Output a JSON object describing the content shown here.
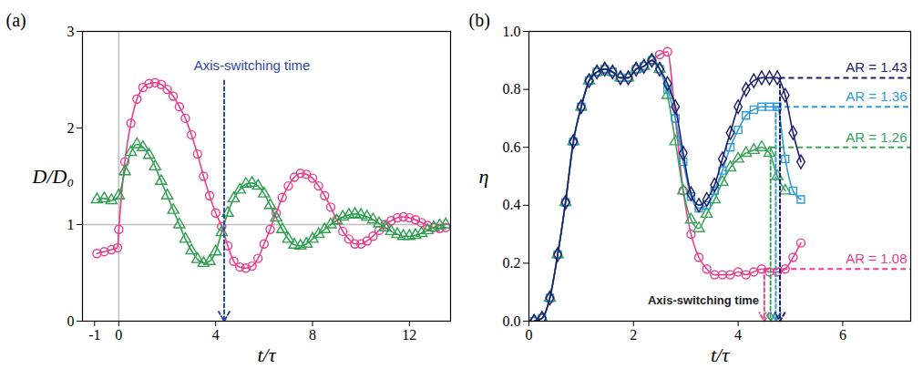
{
  "chart_data": [
    {
      "type": "line",
      "title": "(a)",
      "xlabel": "t/τ",
      "ylabel": "D/D₀",
      "xlim": [
        -1.5,
        13.7
      ],
      "xticks": [
        -1,
        0,
        4,
        8,
        12
      ],
      "ylim": [
        0,
        3
      ],
      "yticks": [
        0,
        1,
        2,
        3
      ],
      "reference_lines": {
        "x": 0,
        "y": 1
      },
      "annotation": {
        "text": "Axis-switching time",
        "x": 4.35,
        "color": "#2b4aa8"
      },
      "series": [
        {
          "color": "#e83e8c",
          "marker": "circle",
          "line_style": "solid",
          "x": [
            -0.9,
            -0.6,
            -0.3,
            -0.05,
            0,
            0.25,
            0.5,
            0.75,
            1,
            1.25,
            1.5,
            1.75,
            2,
            2.25,
            2.5,
            2.75,
            3,
            3.25,
            3.5,
            3.75,
            4,
            4.25,
            4.5,
            4.75,
            5,
            5.25,
            5.5,
            5.75,
            6,
            6.25,
            6.5,
            6.75,
            7,
            7.25,
            7.5,
            7.75,
            8,
            8.25,
            8.5,
            8.75,
            9,
            9.25,
            9.5,
            9.75,
            10,
            10.25,
            10.5,
            10.75,
            11,
            11.25,
            11.5,
            11.75,
            12,
            12.25,
            12.5,
            12.75,
            13,
            13.25,
            13.5
          ],
          "values": [
            0.7,
            0.72,
            0.74,
            0.76,
            0.95,
            1.65,
            2.05,
            2.3,
            2.42,
            2.46,
            2.47,
            2.45,
            2.4,
            2.33,
            2.22,
            2.1,
            1.93,
            1.73,
            1.5,
            1.3,
            1.12,
            0.98,
            0.78,
            0.62,
            0.56,
            0.55,
            0.57,
            0.65,
            0.8,
            0.95,
            1.12,
            1.28,
            1.4,
            1.49,
            1.53,
            1.52,
            1.48,
            1.4,
            1.3,
            1.18,
            1.05,
            0.93,
            0.85,
            0.8,
            0.8,
            0.83,
            0.88,
            0.94,
            1.0,
            1.04,
            1.07,
            1.08,
            1.07,
            1.05,
            1.02,
            0.99,
            0.97,
            0.96,
            0.97
          ]
        },
        {
          "color": "#2e9e4f",
          "marker": "triangle",
          "line_style": "solid",
          "x": [
            -0.9,
            -0.6,
            -0.3,
            0,
            0.25,
            0.5,
            0.75,
            1,
            1.25,
            1.5,
            1.75,
            2,
            2.25,
            2.5,
            2.75,
            3,
            3.25,
            3.5,
            3.75,
            4,
            4.25,
            4.5,
            4.75,
            5,
            5.25,
            5.5,
            5.75,
            6,
            6.25,
            6.5,
            6.75,
            7,
            7.25,
            7.5,
            7.75,
            8,
            8.25,
            8.5,
            8.75,
            9,
            9.25,
            9.5,
            9.75,
            10,
            10.25,
            10.5,
            10.75,
            11,
            11.25,
            11.5,
            11.75,
            12,
            12.25,
            12.5,
            12.75,
            13,
            13.25,
            13.5
          ],
          "values": [
            1.26,
            1.27,
            1.25,
            1.3,
            1.55,
            1.75,
            1.83,
            1.8,
            1.72,
            1.6,
            1.45,
            1.3,
            1.15,
            1.0,
            0.85,
            0.73,
            0.64,
            0.6,
            0.62,
            0.72,
            0.92,
            1.12,
            1.27,
            1.36,
            1.42,
            1.43,
            1.4,
            1.32,
            1.2,
            1.07,
            0.95,
            0.85,
            0.79,
            0.78,
            0.8,
            0.85,
            0.9,
            0.95,
            1.0,
            1.04,
            1.08,
            1.1,
            1.11,
            1.1,
            1.08,
            1.05,
            1.01,
            0.97,
            0.93,
            0.9,
            0.88,
            0.88,
            0.89,
            0.91,
            0.94,
            0.97,
            0.99,
            1.0
          ]
        }
      ]
    },
    {
      "type": "line",
      "title": "(b)",
      "xlabel": "t/τ",
      "ylabel": "η",
      "xlim": [
        0,
        7.3
      ],
      "xticks": [
        0,
        2,
        4,
        6
      ],
      "ylim": [
        0,
        1
      ],
      "yticks": [
        {
          "value": 0,
          "label": "0.0"
        },
        0.2,
        0.4,
        0.6,
        0.8,
        {
          "value": 1,
          "label": "1.0"
        }
      ],
      "annotation": {
        "text": "Axis-switching time",
        "color": "#222222"
      },
      "series": [
        {
          "name": "AR = 1.08",
          "color": "#e83e8c",
          "marker": "circle",
          "line_style": "solid",
          "switch_time": 4.5,
          "plateau": 0.18,
          "x": [
            0.1,
            0.25,
            0.4,
            0.55,
            0.7,
            0.85,
            1.0,
            1.15,
            1.3,
            1.45,
            1.6,
            1.75,
            1.9,
            2.05,
            2.2,
            2.35,
            2.5,
            2.65,
            2.8,
            2.95,
            3.1,
            3.25,
            3.4,
            3.55,
            3.7,
            3.85,
            4.0,
            4.15,
            4.3,
            4.45,
            4.6,
            4.75,
            4.9,
            5.05,
            5.2
          ],
          "values": [
            0.0,
            0.01,
            0.08,
            0.23,
            0.41,
            0.62,
            0.74,
            0.83,
            0.86,
            0.87,
            0.86,
            0.84,
            0.84,
            0.87,
            0.88,
            0.9,
            0.92,
            0.93,
            0.7,
            0.45,
            0.3,
            0.22,
            0.18,
            0.16,
            0.16,
            0.16,
            0.17,
            0.16,
            0.17,
            0.18,
            0.17,
            0.17,
            0.18,
            0.22,
            0.27
          ]
        },
        {
          "name": "AR = 1.26",
          "color": "#3aa35a",
          "marker": "triangle",
          "line_style": "solid",
          "switch_time": 4.62,
          "plateau": 0.6,
          "x": [
            0.1,
            0.25,
            0.4,
            0.55,
            0.7,
            0.85,
            1.0,
            1.15,
            1.3,
            1.45,
            1.6,
            1.75,
            1.9,
            2.05,
            2.2,
            2.35,
            2.5,
            2.65,
            2.8,
            2.95,
            3.1,
            3.25,
            3.4,
            3.55,
            3.7,
            3.85,
            4.0,
            4.15,
            4.3,
            4.45,
            4.6,
            4.75,
            4.9
          ],
          "values": [
            0.0,
            0.01,
            0.08,
            0.23,
            0.41,
            0.62,
            0.74,
            0.83,
            0.86,
            0.87,
            0.86,
            0.84,
            0.84,
            0.87,
            0.88,
            0.9,
            0.87,
            0.78,
            0.62,
            0.45,
            0.35,
            0.32,
            0.37,
            0.42,
            0.48,
            0.53,
            0.56,
            0.58,
            0.59,
            0.6,
            0.58,
            0.5,
            0.45
          ]
        },
        {
          "name": "AR = 1.36",
          "color": "#2f9bd6",
          "marker": "square",
          "line_style": "solid",
          "switch_time": 4.72,
          "plateau": 0.74,
          "x": [
            0.1,
            0.25,
            0.4,
            0.55,
            0.7,
            0.85,
            1.0,
            1.15,
            1.3,
            1.45,
            1.6,
            1.75,
            1.9,
            2.05,
            2.2,
            2.35,
            2.5,
            2.65,
            2.8,
            2.95,
            3.1,
            3.25,
            3.4,
            3.55,
            3.7,
            3.85,
            4.0,
            4.15,
            4.3,
            4.45,
            4.6,
            4.75,
            4.9,
            5.05,
            5.2
          ],
          "values": [
            0.0,
            0.01,
            0.08,
            0.23,
            0.41,
            0.62,
            0.74,
            0.83,
            0.86,
            0.87,
            0.86,
            0.84,
            0.84,
            0.87,
            0.88,
            0.9,
            0.87,
            0.8,
            0.7,
            0.55,
            0.43,
            0.39,
            0.4,
            0.45,
            0.52,
            0.6,
            0.66,
            0.71,
            0.73,
            0.74,
            0.74,
            0.74,
            0.56,
            0.45,
            0.42
          ]
        },
        {
          "name": "AR = 1.43",
          "color": "#1c1f6b",
          "marker": "diamond",
          "line_style": "solid",
          "switch_time": 4.8,
          "plateau": 0.84,
          "x": [
            0.1,
            0.25,
            0.4,
            0.55,
            0.7,
            0.85,
            1.0,
            1.15,
            1.3,
            1.45,
            1.6,
            1.75,
            1.9,
            2.05,
            2.2,
            2.35,
            2.5,
            2.65,
            2.8,
            2.95,
            3.1,
            3.25,
            3.4,
            3.55,
            3.7,
            3.85,
            4.0,
            4.15,
            4.3,
            4.45,
            4.6,
            4.75,
            4.9,
            5.05,
            5.2
          ],
          "values": [
            0.0,
            0.01,
            0.08,
            0.23,
            0.41,
            0.62,
            0.74,
            0.83,
            0.86,
            0.87,
            0.86,
            0.84,
            0.84,
            0.87,
            0.88,
            0.9,
            0.87,
            0.82,
            0.74,
            0.58,
            0.44,
            0.4,
            0.42,
            0.47,
            0.56,
            0.65,
            0.74,
            0.8,
            0.83,
            0.84,
            0.84,
            0.84,
            0.78,
            0.65,
            0.55
          ]
        }
      ]
    }
  ]
}
